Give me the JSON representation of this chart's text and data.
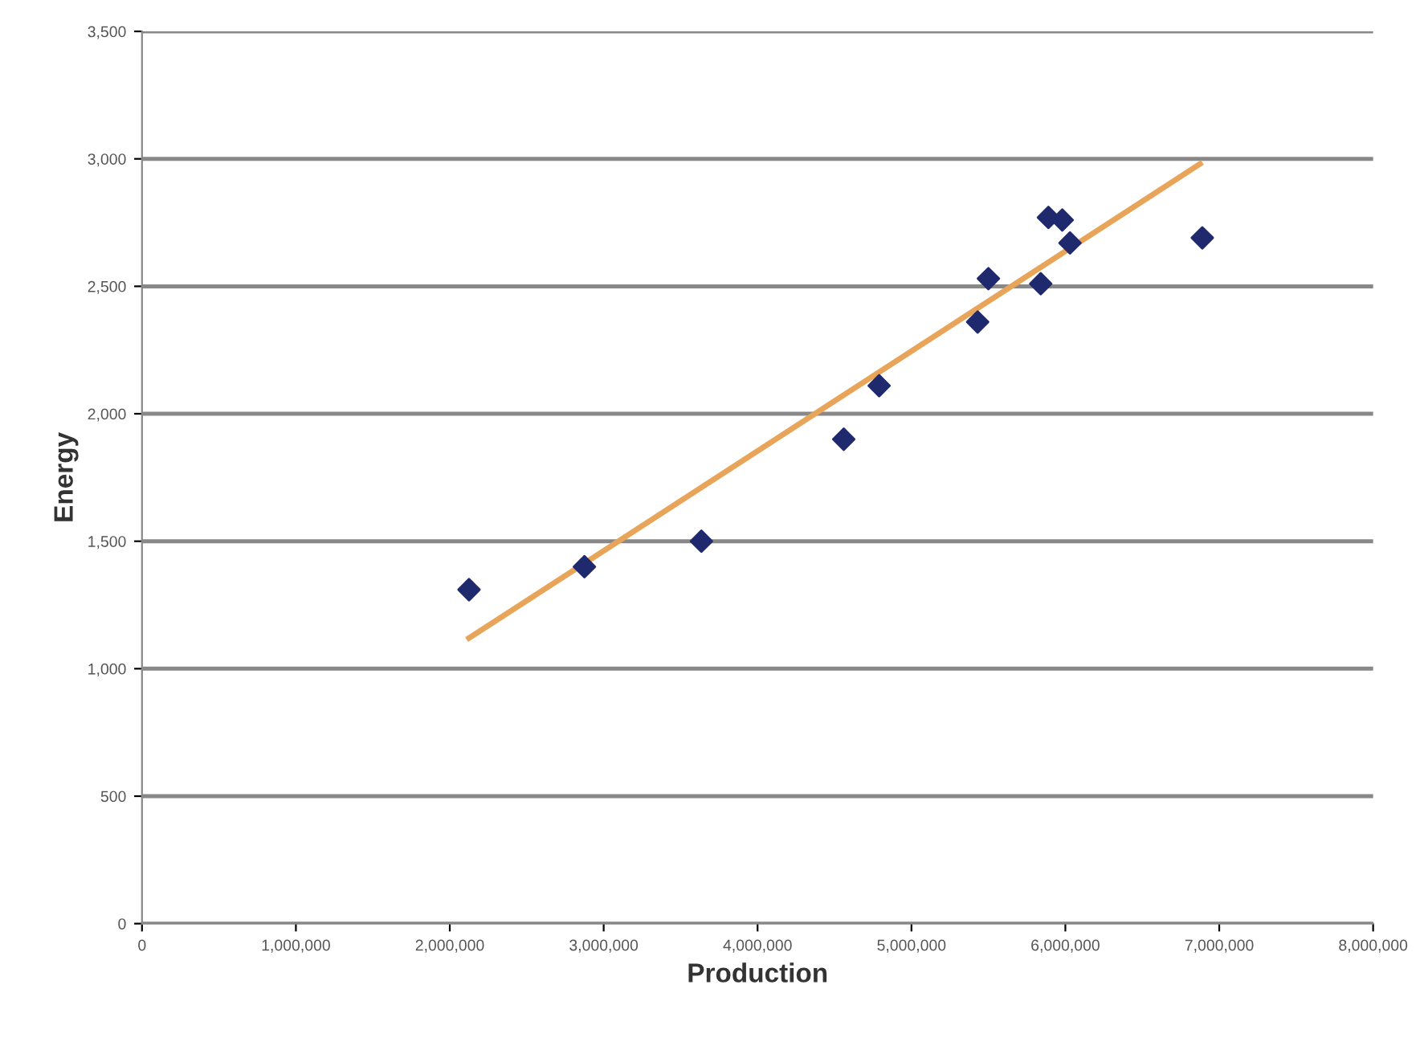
{
  "chart_data": {
    "type": "scatter",
    "xlabel": "Production",
    "ylabel": "Energy",
    "series": [
      {
        "color": "#1f2a6e",
        "marker": "diamond",
        "x": [
          2125000,
          2875000,
          3635000,
          4560000,
          4790000,
          5430000,
          5500000,
          5840000,
          5890000,
          5980000,
          6030000,
          6890000
        ],
        "values": [
          1310,
          1400,
          1500,
          1900,
          2110,
          2360,
          2530,
          2510,
          2770,
          2760,
          2670,
          2690
        ]
      },
      {
        "type": "line",
        "color": "#e8a55a",
        "x": [
          2125000,
          6875000
        ],
        "values": [
          1120,
          2980
        ]
      }
    ],
    "xlim": [
      0,
      8000000
    ],
    "xticks": [
      {
        "value": 0,
        "label": "0"
      },
      {
        "value": 1000000,
        "label": "1,000,000"
      },
      {
        "value": 2000000,
        "label": "2,000,000"
      },
      {
        "value": 3000000,
        "label": "3,000,000"
      },
      {
        "value": 4000000,
        "label": "4,000,000"
      },
      {
        "value": 5000000,
        "label": "5,000,000"
      },
      {
        "value": 6000000,
        "label": "6,000,000"
      },
      {
        "value": 7000000,
        "label": "7,000,000"
      },
      {
        "value": 8000000,
        "label": "8,000,000"
      }
    ],
    "ylim": [
      0,
      3500
    ],
    "yticks": [
      {
        "value": 0,
        "label": "0"
      },
      {
        "value": 500,
        "label": "500"
      },
      {
        "value": 1000,
        "label": "1,000"
      },
      {
        "value": 1500,
        "label": "1,500"
      },
      {
        "value": 2000,
        "label": "2,000"
      },
      {
        "value": 2500,
        "label": "2,500"
      },
      {
        "value": 3000,
        "label": "3,000"
      },
      {
        "value": 3500,
        "label": "3,500"
      }
    ],
    "grid": "y"
  }
}
